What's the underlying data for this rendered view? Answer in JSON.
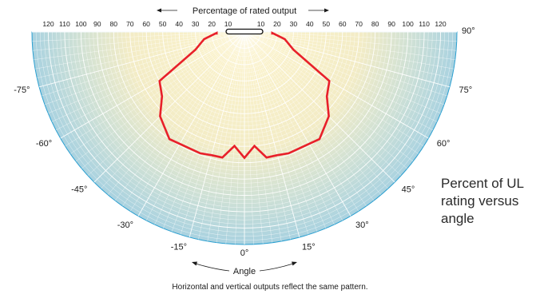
{
  "chart_data": {
    "type": "polar",
    "title": "Percent of UL rating versus angle",
    "radial_label": "Percentage of rated output",
    "angular_label": "Angle",
    "footnote": "Horizontal and vertical outputs reflect the same pattern.",
    "radial_ticks": [
      120,
      110,
      100,
      90,
      80,
      70,
      60,
      50,
      40,
      30,
      20,
      10,
      10,
      20,
      30,
      40,
      50,
      60,
      70,
      80,
      90,
      100,
      110,
      120
    ],
    "radial_max": 130,
    "angle_labels": [
      {
        "angle": -90,
        "text": ""
      },
      {
        "angle": -75,
        "text": "-75°"
      },
      {
        "angle": -60,
        "text": "-60°"
      },
      {
        "angle": -45,
        "text": "-45°"
      },
      {
        "angle": -30,
        "text": "-30°"
      },
      {
        "angle": -15,
        "text": "-15°"
      },
      {
        "angle": 0,
        "text": "0°"
      },
      {
        "angle": 15,
        "text": "15°"
      },
      {
        "angle": 30,
        "text": "30°"
      },
      {
        "angle": 45,
        "text": "45°"
      },
      {
        "angle": 60,
        "text": "60°"
      },
      {
        "angle": 75,
        "text": "75°"
      },
      {
        "angle": 90,
        "text": "90°"
      }
    ],
    "series": [
      {
        "color": "#e8202a",
        "points": [
          {
            "angle": -88,
            "value": 17
          },
          {
            "angle": -80,
            "value": 25
          },
          {
            "angle": -75,
            "value": 28
          },
          {
            "angle": -70,
            "value": 32
          },
          {
            "angle": -60,
            "value": 60
          },
          {
            "angle": -52,
            "value": 64
          },
          {
            "angle": -45,
            "value": 73
          },
          {
            "angle": -35,
            "value": 80
          },
          {
            "angle": -20,
            "value": 79
          },
          {
            "angle": -15,
            "value": 78
          },
          {
            "angle": -10,
            "value": 78
          },
          {
            "angle": -5,
            "value": 70
          },
          {
            "angle": 0,
            "value": 77
          },
          {
            "angle": 5,
            "value": 70
          },
          {
            "angle": 10,
            "value": 78
          },
          {
            "angle": 15,
            "value": 78
          },
          {
            "angle": 20,
            "value": 79
          },
          {
            "angle": 35,
            "value": 80
          },
          {
            "angle": 45,
            "value": 73
          },
          {
            "angle": 52,
            "value": 64
          },
          {
            "angle": 60,
            "value": 60
          },
          {
            "angle": 70,
            "value": 32
          },
          {
            "angle": 75,
            "value": 28
          },
          {
            "angle": 80,
            "value": 25
          },
          {
            "angle": 88,
            "value": 17
          }
        ]
      }
    ],
    "colors": {
      "outer": "#acd4e0",
      "center": "#fdf4cd",
      "grid": "#ffffff",
      "border": "#2a9fd0",
      "series": "#e8202a"
    },
    "grid": true
  }
}
